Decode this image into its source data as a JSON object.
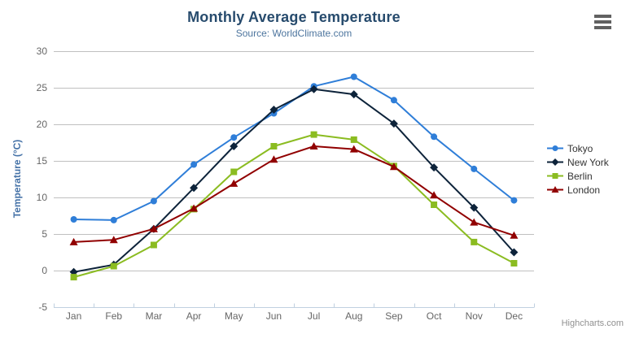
{
  "header": {
    "title": "Monthly Average Temperature",
    "subtitle": "Source: WorldClimate.com",
    "menu_icon": "hamburger-menu-icon"
  },
  "credits": {
    "label": "Highcharts.com"
  },
  "colors": {
    "title": "#274b6d",
    "subtitle": "#4d759e",
    "axis_label": "#666666",
    "y_axis_title": "#4572a7",
    "gridline": "#c0c0c0",
    "axis_line": "#c0d0e0",
    "legend_text": "#333333",
    "credits_text": "#909090",
    "menu_icon": "#616161",
    "background": "#ffffff"
  },
  "chart_data": {
    "type": "line",
    "title": "Monthly Average Temperature",
    "subtitle": "Source: WorldClimate.com",
    "categories": [
      "Jan",
      "Feb",
      "Mar",
      "Apr",
      "May",
      "Jun",
      "Jul",
      "Aug",
      "Sep",
      "Oct",
      "Nov",
      "Dec"
    ],
    "series": [
      {
        "name": "Tokyo",
        "color": "#2f7ed8",
        "marker": "circle",
        "values": [
          7.0,
          6.9,
          9.5,
          14.5,
          18.2,
          21.5,
          25.2,
          26.5,
          23.3,
          18.3,
          13.9,
          9.6
        ]
      },
      {
        "name": "New York",
        "color": "#0d233a",
        "marker": "diamond",
        "values": [
          -0.2,
          0.8,
          5.7,
          11.3,
          17.0,
          22.0,
          24.8,
          24.1,
          20.1,
          14.1,
          8.6,
          2.5
        ]
      },
      {
        "name": "Berlin",
        "color": "#8bbc21",
        "marker": "square",
        "values": [
          -0.9,
          0.6,
          3.5,
          8.4,
          13.5,
          17.0,
          18.6,
          17.9,
          14.3,
          9.0,
          3.9,
          1.0
        ]
      },
      {
        "name": "London",
        "color": "#910000",
        "marker": "triangle",
        "values": [
          3.9,
          4.2,
          5.7,
          8.5,
          11.9,
          15.2,
          17.0,
          16.6,
          14.2,
          10.3,
          6.6,
          4.8
        ]
      }
    ],
    "xlabel": "",
    "ylabel": "Temperature (°C)",
    "ylim": [
      -5,
      30
    ],
    "ytick_step": 5,
    "grid": true,
    "legend_position": "right-middle"
  }
}
